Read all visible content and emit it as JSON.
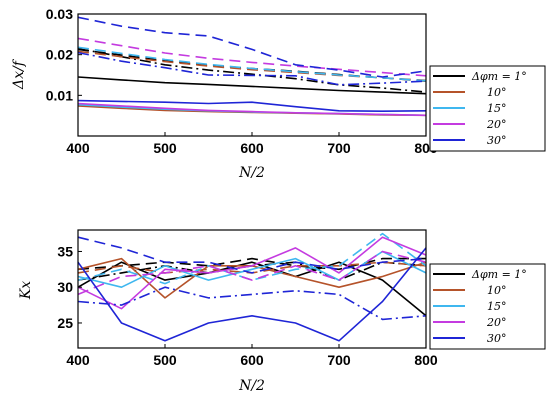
{
  "chart_data": [
    {
      "type": "line",
      "xlabel": "N/2",
      "ylabel": "Δx/f",
      "xlim": [
        400,
        800
      ],
      "ylim": [
        0.0,
        0.03
      ],
      "xticks": [
        400,
        500,
        600,
        700,
        800
      ],
      "yticks": [
        0.01,
        0.02,
        0.03
      ],
      "ytick_labels": [
        "0.01",
        "0.02",
        "0.03"
      ],
      "x": [
        400,
        450,
        500,
        550,
        600,
        650,
        700,
        750,
        800
      ],
      "legend": {
        "position": "right",
        "entries": [
          {
            "label": "Δφm = 1°",
            "color": "#000000"
          },
          {
            "label": "10°",
            "color": "#b5532a"
          },
          {
            "label": "15°",
            "color": "#3fb7ef"
          },
          {
            "label": "20°",
            "color": "#c43be0"
          },
          {
            "label": "30°",
            "color": "#1f25d6"
          }
        ]
      },
      "series": [
        {
          "color": "#000000",
          "dash": "solid",
          "values": [
            0.0145,
            0.0138,
            0.0131,
            0.0127,
            0.0122,
            0.0117,
            0.0112,
            0.0108,
            0.0104
          ]
        },
        {
          "color": "#000000",
          "dash": "dashdot",
          "values": [
            0.0215,
            0.0195,
            0.0175,
            0.0162,
            0.0152,
            0.0141,
            0.0126,
            0.0118,
            0.0108
          ]
        },
        {
          "color": "#000000",
          "dash": "dashed",
          "values": [
            0.0213,
            0.0199,
            0.0185,
            0.0174,
            0.0166,
            0.0159,
            0.0151,
            0.0143,
            0.0135
          ]
        },
        {
          "color": "#b5532a",
          "dash": "solid",
          "values": [
            0.0074,
            0.0068,
            0.0063,
            0.006,
            0.0058,
            0.0056,
            0.0054,
            0.0052,
            0.0051
          ]
        },
        {
          "color": "#b5532a",
          "dash": "dashed",
          "values": [
            0.0208,
            0.0195,
            0.0183,
            0.0172,
            0.0163,
            0.0156,
            0.0149,
            0.0143,
            0.0137
          ]
        },
        {
          "color": "#3fb7ef",
          "dash": "solid",
          "values": [
            0.0077,
            0.0071,
            0.0066,
            0.0062,
            0.0059,
            0.0057,
            0.0055,
            0.0053,
            0.0051
          ]
        },
        {
          "color": "#3fb7ef",
          "dash": "dashed",
          "values": [
            0.0218,
            0.0203,
            0.0188,
            0.0176,
            0.0166,
            0.0158,
            0.015,
            0.0143,
            0.0136
          ]
        },
        {
          "color": "#c43be0",
          "dash": "solid",
          "values": [
            0.008,
            0.0074,
            0.0068,
            0.0063,
            0.006,
            0.0057,
            0.0055,
            0.0053,
            0.0051
          ]
        },
        {
          "color": "#c43be0",
          "dash": "dashed",
          "values": [
            0.024,
            0.0222,
            0.0204,
            0.0191,
            0.0181,
            0.0172,
            0.0164,
            0.0156,
            0.0148
          ]
        },
        {
          "color": "#1f25d6",
          "dash": "solid",
          "values": [
            0.0087,
            0.0085,
            0.0083,
            0.008,
            0.0083,
            0.0072,
            0.0062,
            0.0061,
            0.0062
          ]
        },
        {
          "color": "#1f25d6",
          "dash": "dashed",
          "values": [
            0.0292,
            0.027,
            0.0254,
            0.0246,
            0.0213,
            0.0175,
            0.0162,
            0.0145,
            0.016
          ]
        },
        {
          "color": "#1f25d6",
          "dash": "dashdot",
          "values": [
            0.0205,
            0.0184,
            0.0168,
            0.015,
            0.0149,
            0.0148,
            0.0126,
            0.013,
            0.0135
          ]
        }
      ]
    },
    {
      "type": "line",
      "xlabel": "N/2",
      "ylabel": "Kx",
      "xlim": [
        400,
        800
      ],
      "ylim": [
        21.5,
        38.0
      ],
      "xticks": [
        400,
        500,
        600,
        700,
        800
      ],
      "yticks": [
        25,
        30,
        35
      ],
      "ytick_labels": [
        "25",
        "30",
        "35"
      ],
      "x": [
        400,
        450,
        500,
        550,
        600,
        650,
        700,
        750,
        800
      ],
      "legend": {
        "position": "right",
        "entries": [
          {
            "label": "Δφm = 1°",
            "color": "#000000"
          },
          {
            "label": "10°",
            "color": "#b5532a"
          },
          {
            "label": "15°",
            "color": "#3fb7ef"
          },
          {
            "label": "20°",
            "color": "#c43be0"
          },
          {
            "label": "30°",
            "color": "#1f25d6"
          }
        ]
      },
      "series": [
        {
          "color": "#000000",
          "dash": "solid",
          "values": [
            30.0,
            33.5,
            31.0,
            32.0,
            33.5,
            31.5,
            33.5,
            31.0,
            26.0
          ]
        },
        {
          "color": "#000000",
          "dash": "dashed",
          "values": [
            32.5,
            33.0,
            33.5,
            33.0,
            34.0,
            33.0,
            32.5,
            34.0,
            34.0
          ]
        },
        {
          "color": "#000000",
          "dash": "dashdot",
          "values": [
            31.0,
            32.0,
            33.0,
            32.0,
            33.0,
            33.5,
            31.0,
            33.5,
            33.0
          ]
        },
        {
          "color": "#b5532a",
          "dash": "solid",
          "values": [
            32.5,
            34.0,
            28.5,
            33.0,
            33.0,
            31.5,
            30.0,
            31.5,
            33.5
          ]
        },
        {
          "color": "#b5532a",
          "dash": "dashed",
          "values": [
            32.0,
            33.0,
            32.0,
            32.5,
            32.0,
            33.0,
            33.0,
            33.5,
            33.0
          ]
        },
        {
          "color": "#3fb7ef",
          "dash": "solid",
          "values": [
            31.5,
            30.0,
            33.0,
            31.0,
            32.5,
            34.0,
            31.0,
            35.0,
            32.0
          ]
        },
        {
          "color": "#3fb7ef",
          "dash": "dashed",
          "values": [
            31.0,
            32.5,
            30.5,
            33.0,
            31.0,
            32.5,
            33.0,
            37.5,
            33.0
          ]
        },
        {
          "color": "#c43be0",
          "dash": "solid",
          "values": [
            30.0,
            27.0,
            32.5,
            32.0,
            33.0,
            35.5,
            32.0,
            37.0,
            34.5
          ]
        },
        {
          "color": "#c43be0",
          "dash": "dashed",
          "values": [
            29.0,
            31.5,
            32.0,
            33.0,
            31.0,
            33.0,
            31.0,
            35.0,
            33.5
          ]
        },
        {
          "color": "#1f25d6",
          "dash": "solid",
          "values": [
            33.5,
            25.0,
            22.5,
            25.0,
            26.0,
            25.0,
            22.5,
            28.0,
            35.5
          ]
        },
        {
          "color": "#1f25d6",
          "dash": "dashed",
          "values": [
            37.0,
            35.5,
            33.5,
            33.5,
            32.0,
            33.5,
            32.5,
            33.5,
            34.0
          ]
        },
        {
          "color": "#1f25d6",
          "dash": "dashdot",
          "values": [
            28.0,
            27.5,
            30.0,
            28.5,
            29.0,
            29.5,
            29.0,
            25.5,
            26.0
          ]
        }
      ]
    }
  ]
}
